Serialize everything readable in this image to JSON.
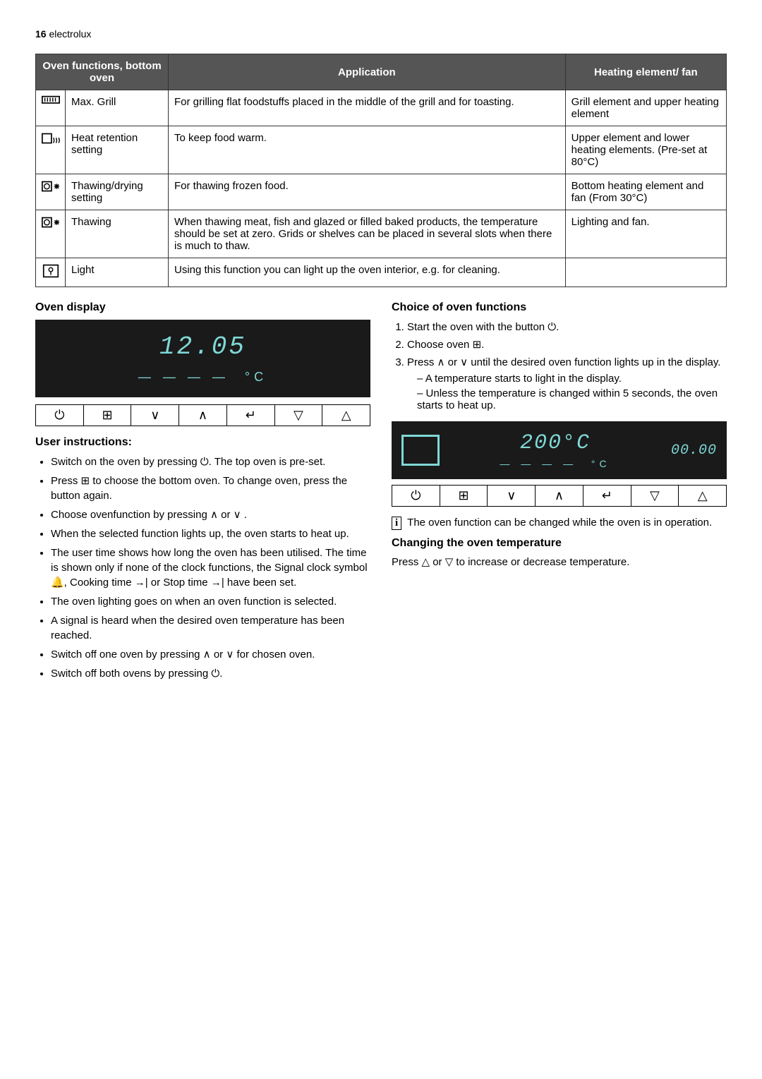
{
  "header": {
    "page_num": "16",
    "brand": "electrolux"
  },
  "table": {
    "headers": [
      "Oven functions, bottom oven",
      "Application",
      "Heating element/ fan"
    ],
    "rows": [
      {
        "name": "Max. Grill",
        "app": "For grilling flat foodstuffs placed in the middle of the grill and for toasting.",
        "heat": "Grill element and upper heating element"
      },
      {
        "name": "Heat retention setting",
        "app": "To keep food warm.",
        "heat": "Upper element and lower heating elements. (Pre-set at 80°C)"
      },
      {
        "name": "Thawing/drying setting",
        "app": "For thawing frozen food.",
        "heat": "Bottom heating element and fan (From 30°C)"
      },
      {
        "name": "Thawing",
        "app": "When thawing meat, fish and glazed or filled baked products, the temperature should be set at zero. Grids or shelves can be placed in several slots when there is much to thaw.",
        "heat": "Lighting and fan."
      },
      {
        "name": "Light",
        "app": "Using this function you can light up the oven interior, e.g. for cleaning.",
        "heat": ""
      }
    ]
  },
  "left": {
    "title_display": "Oven display",
    "display_time": "12.05",
    "display_unit": "°C",
    "title_instr": "User instructions:",
    "bullets": [
      "Switch on the oven by pressing ⏻. The top oven is pre-set.",
      "Press ⊞ to choose the bottom oven. To change oven, press the button again.",
      "Choose ovenfunction by pressing ∧ or ∨ .",
      "When the selected function lights up, the oven starts to heat up.",
      "The user time shows how long the oven has been utilised. The time is shown only if none of the clock functions, the Signal clock symbol 🔔, Cooking time →| or Stop time →| have been set.",
      "The oven lighting goes on when an oven function is selected.",
      "A signal is heard when the desired oven temperature has been reached.",
      "Switch off one oven by pressing ∧ or ∨ for chosen oven.",
      "Switch off both ovens by pressing ⏻."
    ]
  },
  "right": {
    "title_choice": "Choice of oven functions",
    "steps": [
      "Start the oven with the button ⏻.",
      "Choose oven ⊞.",
      "Press ∧ or ∨ until the desired oven function lights up in the display."
    ],
    "sub": [
      "A temperature starts to light in the display.",
      "Unless the temperature is changed within 5 seconds, the oven starts to heat up."
    ],
    "display2_main": "200°C",
    "display2_time": "00.00",
    "display2_unit": "°C",
    "info": "The oven function can be changed while the oven is in operation.",
    "title_temp": "Changing the oven temperature",
    "temp_text": "Press △ or ▽ to increase or decrease temperature."
  },
  "buttons": [
    "⏻",
    "⊞",
    "∨",
    "∧",
    "↵",
    "▽",
    "△"
  ],
  "colors": {
    "display_bg": "#1a1a1a",
    "display_fg": "#7fd8d6",
    "table_header_bg": "#555555"
  }
}
